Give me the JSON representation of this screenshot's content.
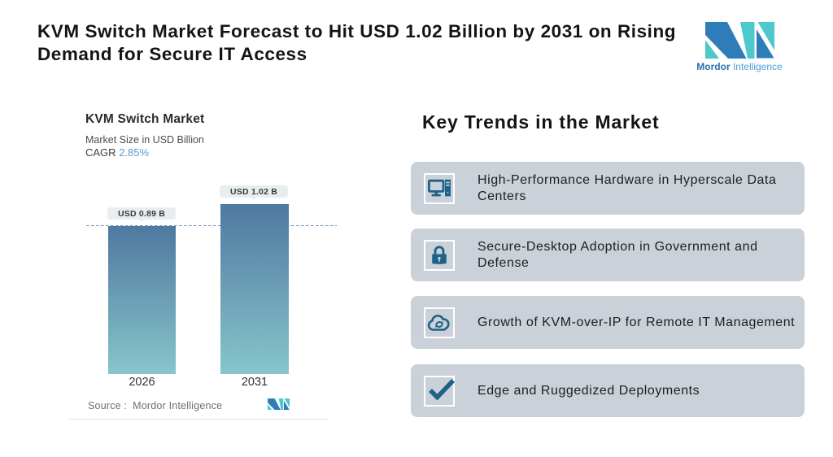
{
  "header": {
    "title": "KVM Switch Market Forecast to Hit USD 1.02 Billion by 2031 on Rising Demand for Secure IT Access",
    "logo": {
      "brand_bold": "Mordor",
      "brand_light": "Intelligence"
    }
  },
  "chart": {
    "title": "KVM Switch Market",
    "subtitle": "Market Size in USD Billion",
    "cagr_label": "CAGR",
    "cagr_value": "2.85%",
    "source_label": "Source :",
    "source_value": "Mordor Intelligence"
  },
  "chart_data": {
    "type": "bar",
    "title": "KVM Switch Market",
    "ylabel": "Market Size in USD Billion",
    "categories": [
      "2026",
      "2031"
    ],
    "values": [
      0.89,
      1.02
    ],
    "value_labels": [
      "USD 0.89 B",
      "USD 1.02 B"
    ],
    "cagr_percent": 2.85,
    "ylim": [
      0,
      1.02
    ],
    "reference_line": 0.89,
    "grid": false,
    "legend": false,
    "bar_gradient_top": "#4f79a0",
    "bar_gradient_bottom": "#87c5cb",
    "reference_line_color": "#6a93be"
  },
  "trends": {
    "heading": "Key Trends in the Market",
    "items": [
      {
        "icon": "desktop-computer-icon",
        "text": "High-Performance Hardware in Hyperscale Data Centers"
      },
      {
        "icon": "padlock-icon",
        "text": "Secure-Desktop Adoption in Government and Defense"
      },
      {
        "icon": "cloud-sync-icon",
        "text": "Growth of KVM-over-IP for Remote IT Management"
      },
      {
        "icon": "checkmark-icon",
        "text": "Edge and Ruggedized Deployments"
      }
    ]
  },
  "colors": {
    "accent_blue": "#5b9bd5",
    "icon_blue": "#1f6287",
    "card_bg": "#cbd1d8",
    "logo_blue": "#2e7cb8",
    "logo_teal": "#4fc8cb",
    "callout_bg": "#e8eeef"
  }
}
